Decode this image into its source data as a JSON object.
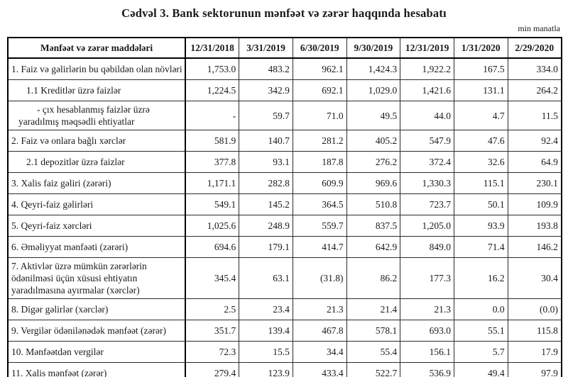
{
  "page": {
    "title": "Cədvəl 3. Bank sektorunun mənfəət və zərər haqqında hesabatı",
    "unit_note": "min manatla"
  },
  "colors": {
    "text": "#1a1a1a",
    "border": "#000000",
    "background": "#ffffff"
  },
  "table": {
    "header": [
      "Mənfəət və zərər maddələri",
      "12/31/2018",
      "3/31/2019",
      "6/30/2019",
      "9/30/2019",
      "12/31/2019",
      "1/31/2020",
      "2/29/2020"
    ],
    "rows": [
      {
        "label": "1. Faiz və gəlirlərin bu qəbildən olan növləri",
        "indent": 0,
        "values": [
          "1,753.0",
          "483.2",
          "962.1",
          "1,424.3",
          "1,922.2",
          "167.5",
          "334.0"
        ]
      },
      {
        "label": "1.1 Kreditlər üzrə faizlər",
        "indent": 1,
        "values": [
          "1,224.5",
          "342.9",
          "692.1",
          "1,029.0",
          "1,421.6",
          "131.1",
          "264.2"
        ]
      },
      {
        "label": "-  çıx hesablanmış faizlər üzrə yaradılmış məqsədli ehtiyatlar",
        "indent": 2,
        "values": [
          "-",
          "59.7",
          "71.0",
          "49.5",
          "44.0",
          "4.7",
          "11.5"
        ]
      },
      {
        "label": "2. Faiz və onlara bağlı xərclər",
        "indent": 0,
        "values": [
          "581.9",
          "140.7",
          "281.2",
          "405.2",
          "547.9",
          "47.6",
          "92.4"
        ]
      },
      {
        "label": "2.1 depozitlər üzrə faizlər",
        "indent": 1,
        "values": [
          "377.8",
          "93.1",
          "187.8",
          "276.2",
          "372.4",
          "32.6",
          "64.9"
        ]
      },
      {
        "label": "3. Xalis faiz gəliri (zərəri)",
        "indent": 0,
        "values": [
          "1,171.1",
          "282.8",
          "609.9",
          "969.6",
          "1,330.3",
          "115.1",
          "230.1"
        ]
      },
      {
        "label": "4. Qeyri-faiz gəlirləri",
        "indent": 0,
        "values": [
          "549.1",
          "145.2",
          "364.5",
          "510.8",
          "723.7",
          "50.1",
          "109.9"
        ]
      },
      {
        "label": "5. Qeyri-faiz xərcləri",
        "indent": 0,
        "values": [
          "1,025.6",
          "248.9",
          "559.7",
          "837.5",
          "1,205.0",
          "93.9",
          "193.8"
        ]
      },
      {
        "label": "6. Əməliyyat mənfəəti (zərəri)",
        "indent": 0,
        "values": [
          "694.6",
          "179.1",
          "414.7",
          "642.9",
          "849.0",
          "71.4",
          "146.2"
        ]
      },
      {
        "label": "7. Aktivlər üzrə mümkün zərərlərin ödənilməsi üçün xüsusi ehtiyatın yaradılmasına ayırmalar (xərclər)",
        "indent": 0,
        "values": [
          "345.4",
          "63.1",
          "(31.8)",
          "86.2",
          "177.3",
          "16.2",
          "30.4"
        ]
      },
      {
        "label": "8. Digər gəlirlər (xərclər)",
        "indent": 0,
        "values": [
          "2.5",
          "23.4",
          "21.3",
          "21.4",
          "21.3",
          "0.0",
          "(0.0)"
        ]
      },
      {
        "label": "9. Vergilər ödənilənədək mənfəət (zərər)",
        "indent": 0,
        "values": [
          "351.7",
          "139.4",
          "467.8",
          "578.1",
          "693.0",
          "55.1",
          "115.8"
        ]
      },
      {
        "label": "10. Mənfəətdən vergilər",
        "indent": 0,
        "values": [
          "72.3",
          "15.5",
          "34.4",
          "55.4",
          "156.1",
          "5.7",
          "17.9"
        ]
      },
      {
        "label": "11. Xalis mənfəət (zərər)",
        "indent": 0,
        "values": [
          "279.4",
          "123.9",
          "433.4",
          "522.7",
          "536.9",
          "49.4",
          "97.9"
        ]
      }
    ]
  }
}
